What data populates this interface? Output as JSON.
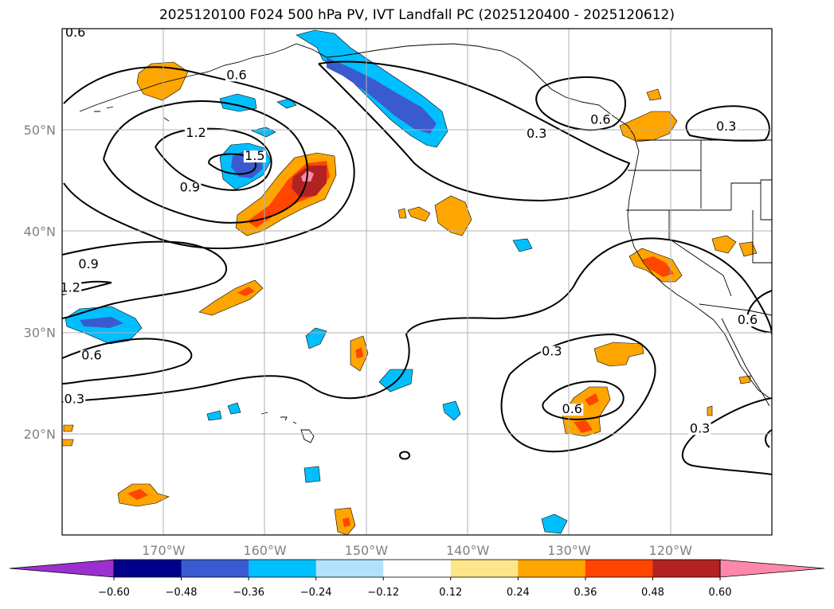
{
  "title": "2025120100 F024 500 hPa PV, IVT Landfall PC (2025120400 - 2025120612)",
  "chart_data": {
    "type": "map",
    "projection": "lat-lon",
    "lon_range": [
      -180,
      -110
    ],
    "lat_range": [
      10,
      60
    ],
    "lon_ticks": [
      {
        "value": -170,
        "label": "170°W"
      },
      {
        "value": -160,
        "label": "160°W"
      },
      {
        "value": -150,
        "label": "150°W"
      },
      {
        "value": -140,
        "label": "140°W"
      },
      {
        "value": -130,
        "label": "130°W"
      },
      {
        "value": -120,
        "label": "120°W"
      }
    ],
    "lat_ticks": [
      {
        "value": 20,
        "label": "20°N"
      },
      {
        "value": 30,
        "label": "30°N"
      },
      {
        "value": 40,
        "label": "40°N"
      },
      {
        "value": 50,
        "label": "50°N"
      }
    ],
    "contour_labels": [
      {
        "text": "0.6",
        "lon": -178.7,
        "lat": 59.3
      },
      {
        "text": "0.6",
        "lon": -162.8,
        "lat": 55.1
      },
      {
        "text": "1.2",
        "lon": -166.8,
        "lat": 49.4
      },
      {
        "text": "1.5",
        "lon": -161.0,
        "lat": 47.1
      },
      {
        "text": "0.9",
        "lon": -167.4,
        "lat": 44.0
      },
      {
        "text": "0.3",
        "lon": -133.2,
        "lat": 49.3
      },
      {
        "text": "0.6",
        "lon": -126.9,
        "lat": 50.7
      },
      {
        "text": "0.3",
        "lon": -114.5,
        "lat": 50.0
      },
      {
        "text": "0.9",
        "lon": -177.4,
        "lat": 36.4
      },
      {
        "text": "1.2",
        "lon": -179.2,
        "lat": 34.1
      },
      {
        "text": "0.6",
        "lon": -177.1,
        "lat": 27.4
      },
      {
        "text": "0.3",
        "lon": -178.8,
        "lat": 23.1
      },
      {
        "text": "0.3",
        "lon": -131.7,
        "lat": 27.8
      },
      {
        "text": "0.6",
        "lon": -129.7,
        "lat": 22.1
      },
      {
        "text": "0.3",
        "lon": -117.1,
        "lat": 20.2
      },
      {
        "text": "0.6",
        "lon": -112.4,
        "lat": 30.9
      }
    ],
    "colorbar": {
      "levels": [
        "−0.60",
        "−0.48",
        "−0.36",
        "−0.24",
        "−0.12",
        "0.12",
        "0.24",
        "0.36",
        "0.48",
        "0.60"
      ],
      "colors": [
        "#9b30d0",
        "#00008b",
        "#3a5bcf",
        "#00bfff",
        "#b0e2fa",
        "#ffffff",
        "#fde68a",
        "#ffa500",
        "#ff4500",
        "#b22222",
        "#ff88aa"
      ]
    }
  }
}
